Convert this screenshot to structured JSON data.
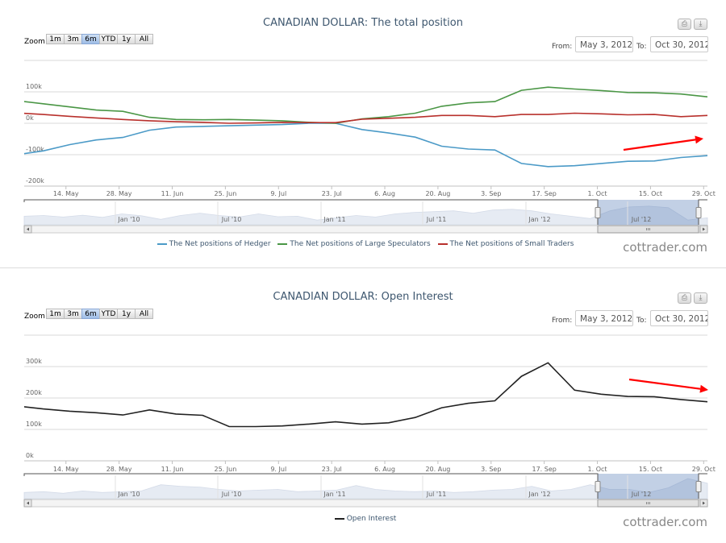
{
  "charts": [
    {
      "title": "CANADIAN DOLLAR: The total position",
      "zoom_label": "Zoom",
      "zoom_buttons": [
        "1m",
        "3m",
        "6m",
        "YTD",
        "1y",
        "All"
      ],
      "zoom_selected": "6m",
      "from_label": "From:",
      "from_value": "May 3, 2012",
      "to_label": "To:",
      "to_value": "Oct 30, 2012",
      "watermark": "cottrader.com",
      "export_icons": [
        "print-icon",
        "download-icon"
      ]
    },
    {
      "title": "CANADIAN DOLLAR: Open Interest",
      "zoom_label": "Zoom",
      "zoom_buttons": [
        "1m",
        "3m",
        "6m",
        "YTD",
        "1y",
        "All"
      ],
      "zoom_selected": "6m",
      "from_label": "From:",
      "from_value": "May 3, 2012",
      "to_label": "To:",
      "to_value": "Oct 30, 2012",
      "watermark": "cottrader.com",
      "export_icons": [
        "print-icon",
        "download-icon"
      ]
    }
  ],
  "chart_data": [
    {
      "type": "line",
      "title": "CANADIAN DOLLAR: The total position",
      "xlim": [
        "2012-05-03",
        "2012-10-30"
      ],
      "ylim": [
        -200000,
        200000
      ],
      "grid": true,
      "legend_placement": "bottom",
      "x_tick_labels": [
        {
          "date": "2012-05-14",
          "label": "14. May"
        },
        {
          "date": "2012-05-28",
          "label": "28. May"
        },
        {
          "date": "2012-06-11",
          "label": "11. Jun"
        },
        {
          "date": "2012-06-25",
          "label": "25. Jun"
        },
        {
          "date": "2012-07-09",
          "label": "9. Jul"
        },
        {
          "date": "2012-07-23",
          "label": "23. Jul"
        },
        {
          "date": "2012-08-06",
          "label": "6. Aug"
        },
        {
          "date": "2012-08-20",
          "label": "20. Aug"
        },
        {
          "date": "2012-09-03",
          "label": "3. Sep"
        },
        {
          "date": "2012-09-17",
          "label": "17. Sep"
        },
        {
          "date": "2012-10-01",
          "label": "1. Oct"
        },
        {
          "date": "2012-10-15",
          "label": "15. Oct"
        },
        {
          "date": "2012-10-29",
          "label": "29. Oct"
        }
      ],
      "y_gridlines": [
        200000,
        100000,
        0,
        -100000,
        -200000
      ],
      "y_tick_labels": [
        {
          "value": 100000,
          "label": "100k"
        },
        {
          "value": 0,
          "label": "0k"
        },
        {
          "value": -100000,
          "label": "-100k"
        },
        {
          "value": -200000,
          "label": "-200k"
        }
      ],
      "x": [
        "2012-05-01",
        "2012-05-08",
        "2012-05-15",
        "2012-05-22",
        "2012-05-29",
        "2012-06-05",
        "2012-06-12",
        "2012-06-19",
        "2012-06-26",
        "2012-07-03",
        "2012-07-10",
        "2012-07-17",
        "2012-07-24",
        "2012-07-31",
        "2012-08-07",
        "2012-08-14",
        "2012-08-21",
        "2012-08-28",
        "2012-09-04",
        "2012-09-11",
        "2012-09-18",
        "2012-09-25",
        "2012-10-02",
        "2012-10-09",
        "2012-10-16",
        "2012-10-23",
        "2012-10-30"
      ],
      "series": [
        {
          "name": "The Net positions of Hedger",
          "color": "#4b9ac7",
          "values": [
            -100000,
            -88000,
            -68000,
            -53000,
            -45000,
            -22000,
            -12000,
            -10000,
            -8000,
            -6000,
            -4000,
            0,
            0,
            -20000,
            -31000,
            -44000,
            -73000,
            -82000,
            -85000,
            -128000,
            -138000,
            -135000,
            -128000,
            -121000,
            -120000,
            -109000,
            -103000
          ]
        },
        {
          "name": "The Net positions of Large Speculators",
          "color": "#4a9645",
          "values": [
            72000,
            62000,
            52000,
            42000,
            38000,
            19000,
            12000,
            11000,
            12000,
            10000,
            8000,
            3000,
            0,
            14000,
            21000,
            32000,
            54000,
            65000,
            69000,
            105000,
            115000,
            109000,
            104000,
            98000,
            97000,
            93000,
            84000
          ]
        },
        {
          "name": "The Net positions of Small Traders",
          "color": "#b8302c",
          "values": [
            33000,
            28000,
            22000,
            17000,
            12000,
            8000,
            5000,
            3000,
            0,
            1000,
            3000,
            2000,
            2000,
            13000,
            16000,
            19000,
            25000,
            25000,
            21000,
            28000,
            28000,
            32000,
            30000,
            27000,
            28000,
            21000,
            25000
          ]
        }
      ],
      "annotations": [
        {
          "type": "arrow",
          "color": "#ff0000",
          "direction": "up-right"
        }
      ],
      "navigator": {
        "labels": [
          "Jan '10",
          "Jul '10",
          "Jan '11",
          "Jul '11",
          "Jan '12",
          "Jul '12"
        ],
        "values": [
          0.55,
          0.6,
          0.5,
          0.62,
          0.48,
          0.7,
          0.58,
          0.35,
          0.6,
          0.75,
          0.6,
          0.5,
          0.7,
          0.52,
          0.55,
          0.3,
          0.45,
          0.6,
          0.5,
          0.7,
          0.8,
          0.85,
          0.9,
          0.75,
          0.95,
          1.0,
          0.9,
          0.7,
          0.55,
          0.4,
          0.9,
          1.15,
          1.2,
          1.1,
          0.3,
          0.45
        ]
      }
    },
    {
      "type": "line",
      "title": "CANADIAN DOLLAR: Open Interest",
      "xlim": [
        "2012-05-03",
        "2012-10-30"
      ],
      "ylim": [
        0,
        400000
      ],
      "grid": true,
      "legend_placement": "bottom",
      "x_tick_labels": [
        {
          "date": "2012-05-14",
          "label": "14. May"
        },
        {
          "date": "2012-05-28",
          "label": "28. May"
        },
        {
          "date": "2012-06-11",
          "label": "11. Jun"
        },
        {
          "date": "2012-06-25",
          "label": "25. Jun"
        },
        {
          "date": "2012-07-09",
          "label": "9. Jul"
        },
        {
          "date": "2012-07-23",
          "label": "23. Jul"
        },
        {
          "date": "2012-08-06",
          "label": "6. Aug"
        },
        {
          "date": "2012-08-20",
          "label": "20. Aug"
        },
        {
          "date": "2012-09-03",
          "label": "3. Sep"
        },
        {
          "date": "2012-09-17",
          "label": "17. Sep"
        },
        {
          "date": "2012-10-01",
          "label": "1. Oct"
        },
        {
          "date": "2012-10-15",
          "label": "15. Oct"
        },
        {
          "date": "2012-10-29",
          "label": "29. Oct"
        }
      ],
      "y_gridlines": [
        400000,
        300000,
        200000,
        100000,
        0
      ],
      "y_tick_labels": [
        {
          "value": 300000,
          "label": "300k"
        },
        {
          "value": 200000,
          "label": "200k"
        },
        {
          "value": 100000,
          "label": "100k"
        },
        {
          "value": 0,
          "label": "0k"
        }
      ],
      "x": [
        "2012-05-01",
        "2012-05-08",
        "2012-05-15",
        "2012-05-22",
        "2012-05-29",
        "2012-06-05",
        "2012-06-12",
        "2012-06-19",
        "2012-06-26",
        "2012-07-03",
        "2012-07-10",
        "2012-07-17",
        "2012-07-24",
        "2012-07-31",
        "2012-08-07",
        "2012-08-14",
        "2012-08-21",
        "2012-08-28",
        "2012-09-04",
        "2012-09-11",
        "2012-09-18",
        "2012-09-25",
        "2012-10-02",
        "2012-10-09",
        "2012-10-16",
        "2012-10-23",
        "2012-10-30"
      ],
      "series": [
        {
          "name": "Open Interest",
          "color": "#222222",
          "values": [
            175000,
            165000,
            158000,
            153000,
            146000,
            162000,
            149000,
            145000,
            109000,
            109000,
            111000,
            117000,
            124000,
            117000,
            121000,
            138000,
            169000,
            183000,
            191000,
            269000,
            312000,
            225000,
            212000,
            205000,
            204000,
            195000,
            188000
          ]
        }
      ],
      "annotations": [
        {
          "type": "arrow",
          "color": "#ff0000",
          "direction": "down-right"
        }
      ],
      "navigator": {
        "labels": [
          "Jan '10",
          "Jul '10",
          "Jan '11",
          "Jul '11",
          "Jan '12",
          "Jul '12"
        ],
        "values": [
          0.4,
          0.45,
          0.35,
          0.5,
          0.4,
          0.45,
          0.5,
          0.9,
          0.8,
          0.75,
          0.6,
          0.5,
          0.55,
          0.6,
          0.45,
          0.5,
          0.55,
          0.85,
          0.6,
          0.5,
          0.45,
          0.5,
          0.4,
          0.45,
          0.55,
          0.6,
          0.8,
          0.5,
          0.6,
          0.9,
          0.6,
          0.6,
          0.4,
          0.7,
          1.5,
          1.0
        ]
      }
    }
  ]
}
